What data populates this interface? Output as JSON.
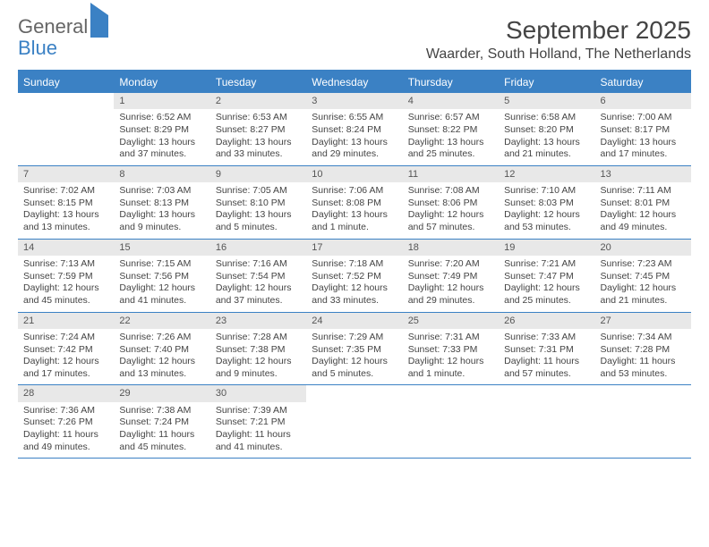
{
  "logo": {
    "word1": "General",
    "word2": "Blue"
  },
  "title": "September 2025",
  "location": "Waarder, South Holland, The Netherlands",
  "header_bg": "#3b81c4",
  "day_names": [
    "Sunday",
    "Monday",
    "Tuesday",
    "Wednesday",
    "Thursday",
    "Friday",
    "Saturday"
  ],
  "weeks": [
    [
      null,
      {
        "n": "1",
        "sr": "Sunrise: 6:52 AM",
        "ss": "Sunset: 8:29 PM",
        "dl": "Daylight: 13 hours and 37 minutes."
      },
      {
        "n": "2",
        "sr": "Sunrise: 6:53 AM",
        "ss": "Sunset: 8:27 PM",
        "dl": "Daylight: 13 hours and 33 minutes."
      },
      {
        "n": "3",
        "sr": "Sunrise: 6:55 AM",
        "ss": "Sunset: 8:24 PM",
        "dl": "Daylight: 13 hours and 29 minutes."
      },
      {
        "n": "4",
        "sr": "Sunrise: 6:57 AM",
        "ss": "Sunset: 8:22 PM",
        "dl": "Daylight: 13 hours and 25 minutes."
      },
      {
        "n": "5",
        "sr": "Sunrise: 6:58 AM",
        "ss": "Sunset: 8:20 PM",
        "dl": "Daylight: 13 hours and 21 minutes."
      },
      {
        "n": "6",
        "sr": "Sunrise: 7:00 AM",
        "ss": "Sunset: 8:17 PM",
        "dl": "Daylight: 13 hours and 17 minutes."
      }
    ],
    [
      {
        "n": "7",
        "sr": "Sunrise: 7:02 AM",
        "ss": "Sunset: 8:15 PM",
        "dl": "Daylight: 13 hours and 13 minutes."
      },
      {
        "n": "8",
        "sr": "Sunrise: 7:03 AM",
        "ss": "Sunset: 8:13 PM",
        "dl": "Daylight: 13 hours and 9 minutes."
      },
      {
        "n": "9",
        "sr": "Sunrise: 7:05 AM",
        "ss": "Sunset: 8:10 PM",
        "dl": "Daylight: 13 hours and 5 minutes."
      },
      {
        "n": "10",
        "sr": "Sunrise: 7:06 AM",
        "ss": "Sunset: 8:08 PM",
        "dl": "Daylight: 13 hours and 1 minute."
      },
      {
        "n": "11",
        "sr": "Sunrise: 7:08 AM",
        "ss": "Sunset: 8:06 PM",
        "dl": "Daylight: 12 hours and 57 minutes."
      },
      {
        "n": "12",
        "sr": "Sunrise: 7:10 AM",
        "ss": "Sunset: 8:03 PM",
        "dl": "Daylight: 12 hours and 53 minutes."
      },
      {
        "n": "13",
        "sr": "Sunrise: 7:11 AM",
        "ss": "Sunset: 8:01 PM",
        "dl": "Daylight: 12 hours and 49 minutes."
      }
    ],
    [
      {
        "n": "14",
        "sr": "Sunrise: 7:13 AM",
        "ss": "Sunset: 7:59 PM",
        "dl": "Daylight: 12 hours and 45 minutes."
      },
      {
        "n": "15",
        "sr": "Sunrise: 7:15 AM",
        "ss": "Sunset: 7:56 PM",
        "dl": "Daylight: 12 hours and 41 minutes."
      },
      {
        "n": "16",
        "sr": "Sunrise: 7:16 AM",
        "ss": "Sunset: 7:54 PM",
        "dl": "Daylight: 12 hours and 37 minutes."
      },
      {
        "n": "17",
        "sr": "Sunrise: 7:18 AM",
        "ss": "Sunset: 7:52 PM",
        "dl": "Daylight: 12 hours and 33 minutes."
      },
      {
        "n": "18",
        "sr": "Sunrise: 7:20 AM",
        "ss": "Sunset: 7:49 PM",
        "dl": "Daylight: 12 hours and 29 minutes."
      },
      {
        "n": "19",
        "sr": "Sunrise: 7:21 AM",
        "ss": "Sunset: 7:47 PM",
        "dl": "Daylight: 12 hours and 25 minutes."
      },
      {
        "n": "20",
        "sr": "Sunrise: 7:23 AM",
        "ss": "Sunset: 7:45 PM",
        "dl": "Daylight: 12 hours and 21 minutes."
      }
    ],
    [
      {
        "n": "21",
        "sr": "Sunrise: 7:24 AM",
        "ss": "Sunset: 7:42 PM",
        "dl": "Daylight: 12 hours and 17 minutes."
      },
      {
        "n": "22",
        "sr": "Sunrise: 7:26 AM",
        "ss": "Sunset: 7:40 PM",
        "dl": "Daylight: 12 hours and 13 minutes."
      },
      {
        "n": "23",
        "sr": "Sunrise: 7:28 AM",
        "ss": "Sunset: 7:38 PM",
        "dl": "Daylight: 12 hours and 9 minutes."
      },
      {
        "n": "24",
        "sr": "Sunrise: 7:29 AM",
        "ss": "Sunset: 7:35 PM",
        "dl": "Daylight: 12 hours and 5 minutes."
      },
      {
        "n": "25",
        "sr": "Sunrise: 7:31 AM",
        "ss": "Sunset: 7:33 PM",
        "dl": "Daylight: 12 hours and 1 minute."
      },
      {
        "n": "26",
        "sr": "Sunrise: 7:33 AM",
        "ss": "Sunset: 7:31 PM",
        "dl": "Daylight: 11 hours and 57 minutes."
      },
      {
        "n": "27",
        "sr": "Sunrise: 7:34 AM",
        "ss": "Sunset: 7:28 PM",
        "dl": "Daylight: 11 hours and 53 minutes."
      }
    ],
    [
      {
        "n": "28",
        "sr": "Sunrise: 7:36 AM",
        "ss": "Sunset: 7:26 PM",
        "dl": "Daylight: 11 hours and 49 minutes."
      },
      {
        "n": "29",
        "sr": "Sunrise: 7:38 AM",
        "ss": "Sunset: 7:24 PM",
        "dl": "Daylight: 11 hours and 45 minutes."
      },
      {
        "n": "30",
        "sr": "Sunrise: 7:39 AM",
        "ss": "Sunset: 7:21 PM",
        "dl": "Daylight: 11 hours and 41 minutes."
      },
      null,
      null,
      null,
      null
    ]
  ]
}
